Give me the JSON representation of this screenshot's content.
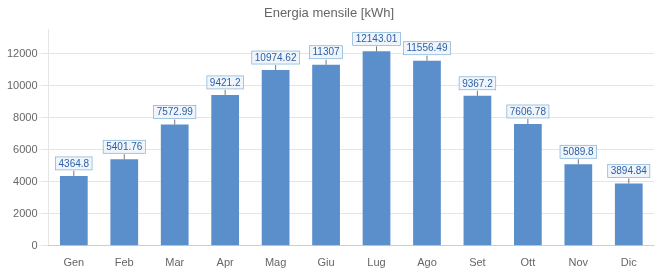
{
  "chart_data": {
    "type": "bar",
    "title": "Energia mensile [kWh]",
    "categories": [
      "Gen",
      "Feb",
      "Mar",
      "Apr",
      "Mag",
      "Giu",
      "Lug",
      "Ago",
      "Set",
      "Ott",
      "Nov",
      "Dic"
    ],
    "values": [
      4364.8,
      5401.76,
      7572.99,
      9421.2,
      10974.62,
      11307,
      12143.01,
      11556.49,
      9367.2,
      7606.78,
      5089.8,
      3894.84
    ],
    "color": "#5B8FCC",
    "ylim": [
      0,
      13500
    ],
    "yticks": [
      0,
      2000,
      4000,
      6000,
      8000,
      10000,
      12000
    ],
    "grid": true,
    "data_labels": true
  }
}
